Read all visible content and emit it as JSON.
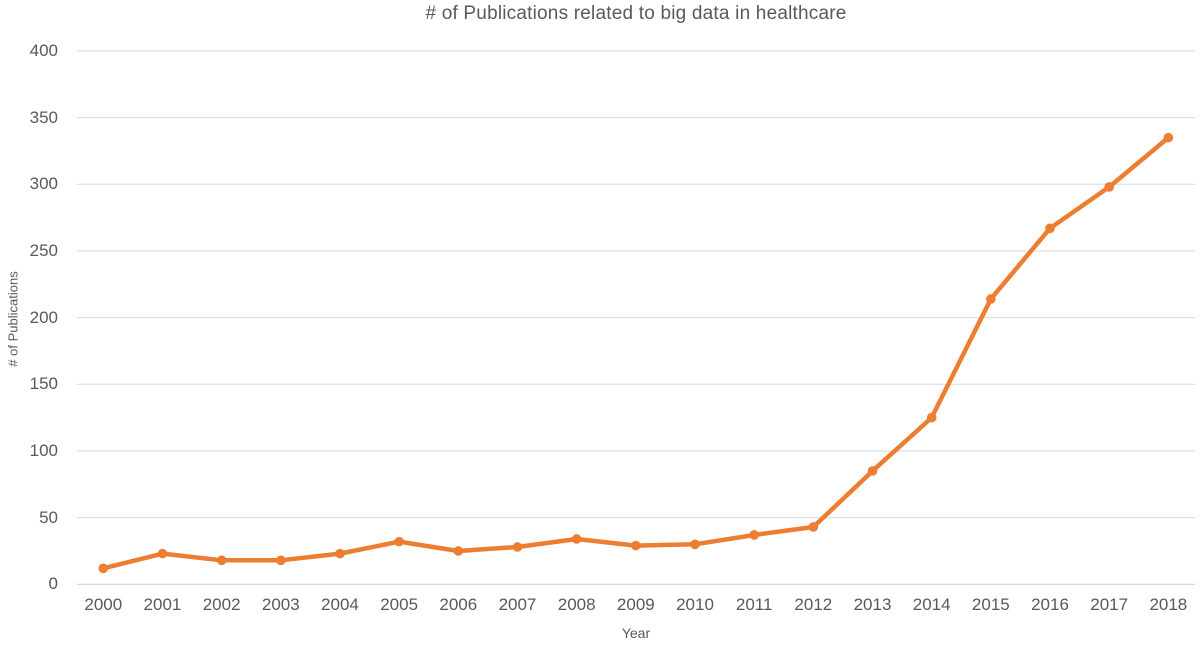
{
  "chart_data": {
    "type": "line",
    "title": "# of Publications related to big data in healthcare",
    "xlabel": "Year",
    "ylabel": "# of Publications",
    "categories": [
      "2000",
      "2001",
      "2002",
      "2003",
      "2004",
      "2005",
      "2006",
      "2007",
      "2008",
      "2009",
      "2010",
      "2011",
      "2012",
      "2013",
      "2014",
      "2015",
      "2016",
      "2017",
      "2018"
    ],
    "series": [
      {
        "name": "# of Publications",
        "values": [
          12,
          23,
          18,
          18,
          23,
          32,
          25,
          28,
          34,
          29,
          30,
          37,
          43,
          85,
          125,
          214,
          267,
          298,
          335
        ]
      }
    ],
    "ylim": [
      0,
      400
    ],
    "yticks": [
      0,
      50,
      100,
      150,
      200,
      250,
      300,
      350,
      400
    ],
    "grid": true,
    "legend_position": "none",
    "line_color": "#ED7D31",
    "marker": "circle",
    "gridline_color": "#D9D9D9",
    "axis_line_color": "#C9C9C9",
    "text_color": "#595959"
  }
}
